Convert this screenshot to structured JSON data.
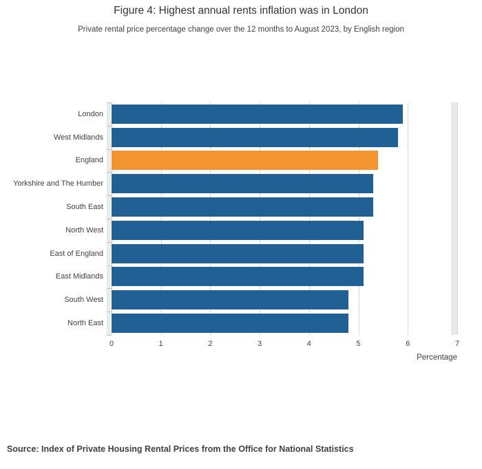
{
  "header": {
    "title": "Figure 4: Highest annual rents inflation was in London",
    "subtitle": "Private rental price percentage change over the 12 months to August 2023, by English region"
  },
  "chart_data": {
    "type": "bar",
    "orientation": "horizontal",
    "categories": [
      "London",
      "West Midlands",
      "England",
      "Yorkshire and The Humber",
      "South East",
      "North West",
      "East of England",
      "East Midlands",
      "South West",
      "North East"
    ],
    "values": [
      5.9,
      5.8,
      5.4,
      5.3,
      5.3,
      5.1,
      5.1,
      5.1,
      4.8,
      4.8
    ],
    "highlight_category": "England",
    "title": "Figure 4: Highest annual rents inflation was in London",
    "subtitle": "Private rental price percentage change over the 12 months to August 2023, by English region",
    "xlabel": "Percentage",
    "ylabel": "",
    "xlim": [
      0,
      7
    ],
    "x_ticks": [
      0,
      1,
      2,
      3,
      4,
      5,
      6,
      7
    ],
    "grid": true,
    "legend": "none",
    "colors": {
      "bar": "#206095",
      "highlight": "#f39431",
      "gridline": "#d9d9d9",
      "text": "#414042"
    }
  },
  "footer": {
    "source": "Source: Index of Private Housing Rental Prices from the Office for National Statistics"
  }
}
